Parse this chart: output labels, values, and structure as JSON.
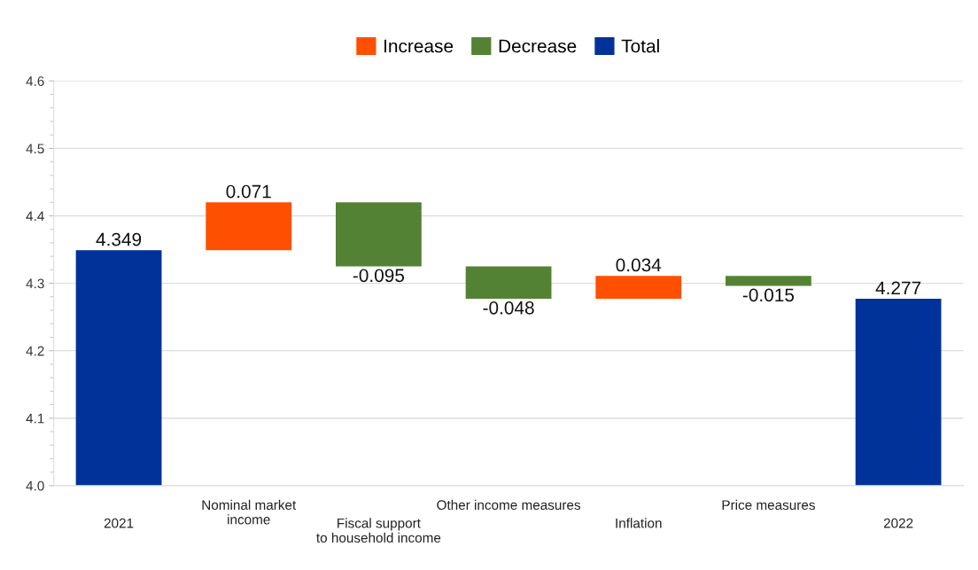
{
  "chart_data": {
    "type": "bar",
    "categories": [
      "2021",
      "Nominal market\nincome",
      "Fiscal support\nto household income",
      "Other income measures",
      "Inflation",
      "Price measures",
      "2022"
    ],
    "series": [
      {
        "name": "Increase",
        "color": "#ff4f00",
        "values": [
          null,
          0.071,
          null,
          null,
          0.034,
          null,
          null
        ],
        "base": [
          null,
          4.349,
          null,
          null,
          4.277,
          null,
          null
        ]
      },
      {
        "name": "Decrease",
        "color": "#548235",
        "values": [
          null,
          null,
          -0.095,
          -0.048,
          null,
          -0.015,
          null
        ],
        "base": [
          null,
          null,
          4.42,
          4.325,
          null,
          4.311,
          null
        ]
      },
      {
        "name": "Total",
        "color": "#003299",
        "values": [
          4.349,
          null,
          null,
          null,
          null,
          null,
          4.277
        ]
      }
    ],
    "ylim": [
      4.0,
      4.6
    ],
    "yticks": [
      {
        "value": 4.0,
        "label": "4.0"
      },
      4.1,
      4.2,
      4.3,
      4.4,
      4.5,
      4.6
    ],
    "grid": "y",
    "legend": "top",
    "data_labels": true
  }
}
